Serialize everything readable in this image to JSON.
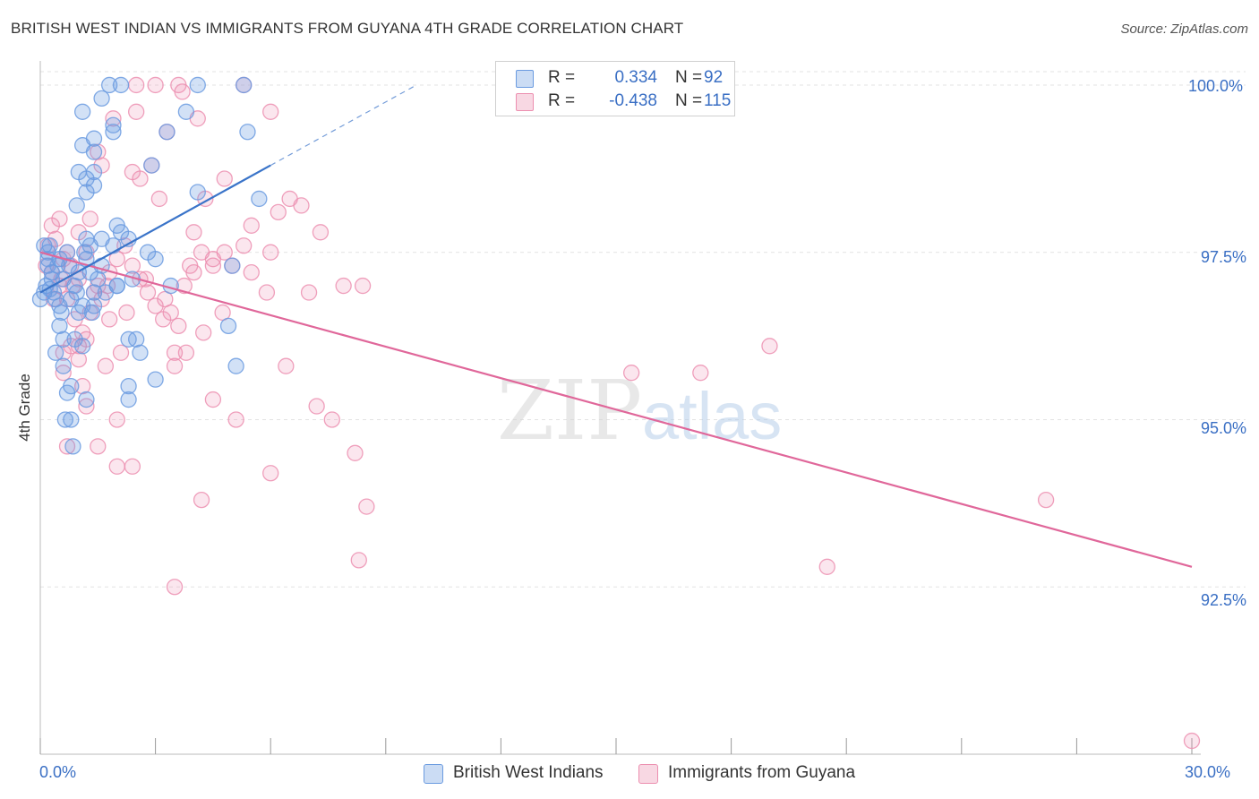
{
  "header": {
    "title": "BRITISH WEST INDIAN VS IMMIGRANTS FROM GUYANA 4TH GRADE CORRELATION CHART",
    "source": "Source: ZipAtlas.com"
  },
  "watermark": {
    "part1": "ZIP",
    "part2": "atlas"
  },
  "stats": {
    "blue": {
      "r_label": "R =",
      "r_value": "0.334",
      "n_label": "N =",
      "n_value": "92"
    },
    "pink": {
      "r_label": "R =",
      "r_value": "-0.438",
      "n_label": "N =",
      "n_value": "115"
    }
  },
  "legend": {
    "blue_label": "British West Indians",
    "pink_label": "Immigrants from Guyana"
  },
  "axes": {
    "ylabel": "4th Grade",
    "x_tick_labels": [
      "0.0%",
      "30.0%"
    ],
    "y_tick_labels": [
      "100.0%",
      "97.5%",
      "95.0%",
      "92.5%"
    ]
  },
  "colors": {
    "blue": "#6b9be0",
    "blue_fill": "rgba(107,155,224,0.30)",
    "blue_line": "#3a74c9",
    "pink": "#ec8fb0",
    "pink_fill": "rgba(236,143,176,0.22)",
    "pink_line": "#e0679a",
    "grid": "#e3e3e3",
    "tick_text": "#3a6fc4"
  },
  "chart_data": {
    "type": "scatter",
    "title": "BRITISH WEST INDIAN VS IMMIGRANTS FROM GUYANA 4TH GRADE CORRELATION CHART",
    "xlabel": "",
    "ylabel": "4th Grade",
    "xlim": [
      0,
      30
    ],
    "ylim": [
      90.0,
      100.2
    ],
    "x_ticks": [
      0,
      3,
      6,
      9,
      12,
      15,
      18,
      21,
      24,
      27,
      30
    ],
    "y_gridlines": [
      100.0,
      97.5,
      95.0,
      92.5
    ],
    "grid": true,
    "legend_position": "bottom-center",
    "series": [
      {
        "name": "British West Indians",
        "r": 0.334,
        "n": 92,
        "trend": {
          "x": [
            0,
            6.0
          ],
          "y": [
            96.9,
            98.8
          ],
          "dashed_extension_x": [
            6.0,
            9.8
          ],
          "dashed_extension_y": [
            98.8,
            100.0
          ]
        },
        "points": [
          [
            0.1,
            97.6
          ],
          [
            0.2,
            97.3
          ],
          [
            0.15,
            97.0
          ],
          [
            0.3,
            97.2
          ],
          [
            0.2,
            97.5
          ],
          [
            0.4,
            96.8
          ],
          [
            0.5,
            97.4
          ],
          [
            0.6,
            97.1
          ],
          [
            0.35,
            96.9
          ],
          [
            0.25,
            97.6
          ],
          [
            0.8,
            96.8
          ],
          [
            0.9,
            97.0
          ],
          [
            1.0,
            97.2
          ],
          [
            0.7,
            97.5
          ],
          [
            1.1,
            96.7
          ],
          [
            1.2,
            97.4
          ],
          [
            1.3,
            97.6
          ],
          [
            1.4,
            96.9
          ],
          [
            1.5,
            97.1
          ],
          [
            1.6,
            97.3
          ],
          [
            0.5,
            96.4
          ],
          [
            0.6,
            96.2
          ],
          [
            0.9,
            96.2
          ],
          [
            1.1,
            96.1
          ],
          [
            0.4,
            96.0
          ],
          [
            0.6,
            95.8
          ],
          [
            1.0,
            96.6
          ],
          [
            1.4,
            96.7
          ],
          [
            1.7,
            96.9
          ],
          [
            2.0,
            97.0
          ],
          [
            0.7,
            95.4
          ],
          [
            0.8,
            95.5
          ],
          [
            1.2,
            95.3
          ],
          [
            0.65,
            95.0
          ],
          [
            0.8,
            95.0
          ],
          [
            0.85,
            94.6
          ],
          [
            2.3,
            95.5
          ],
          [
            2.3,
            95.3
          ],
          [
            2.6,
            96.0
          ],
          [
            2.3,
            96.2
          ],
          [
            0.95,
            98.2
          ],
          [
            1.2,
            98.4
          ],
          [
            1.4,
            98.5
          ],
          [
            1.0,
            98.7
          ],
          [
            1.2,
            98.6
          ],
          [
            1.4,
            98.7
          ],
          [
            1.1,
            99.1
          ],
          [
            1.4,
            99.2
          ],
          [
            1.4,
            99.0
          ],
          [
            1.1,
            99.6
          ],
          [
            1.9,
            99.3
          ],
          [
            1.9,
            99.4
          ],
          [
            1.6,
            99.8
          ],
          [
            1.8,
            100.0
          ],
          [
            2.1,
            100.0
          ],
          [
            4.1,
            100.0
          ],
          [
            5.3,
            100.0
          ],
          [
            3.8,
            99.6
          ],
          [
            5.4,
            99.3
          ],
          [
            3.3,
            99.3
          ],
          [
            2.9,
            98.8
          ],
          [
            4.1,
            98.4
          ],
          [
            5.7,
            98.3
          ],
          [
            2.0,
            97.9
          ],
          [
            2.1,
            97.8
          ],
          [
            1.9,
            97.6
          ],
          [
            2.3,
            97.7
          ],
          [
            1.6,
            97.7
          ],
          [
            1.2,
            97.7
          ],
          [
            2.8,
            97.5
          ],
          [
            3.0,
            97.4
          ],
          [
            2.4,
            97.1
          ],
          [
            3.4,
            97.0
          ],
          [
            5.0,
            97.3
          ],
          [
            1.3,
            97.2
          ],
          [
            2.0,
            97.0
          ],
          [
            4.9,
            96.4
          ],
          [
            3.0,
            95.6
          ],
          [
            5.1,
            95.8
          ],
          [
            2.5,
            96.2
          ],
          [
            0.3,
            97.1
          ],
          [
            0.5,
            96.7
          ],
          [
            0.2,
            97.4
          ],
          [
            0.45,
            97.3
          ],
          [
            0.55,
            96.6
          ],
          [
            0.75,
            97.3
          ],
          [
            0.95,
            96.9
          ],
          [
            1.15,
            97.5
          ],
          [
            1.35,
            96.6
          ],
          [
            0.1,
            96.9
          ],
          [
            0.0,
            96.8
          ],
          [
            0.25,
            96.95
          ]
        ]
      },
      {
        "name": "Immigrants from Guyana",
        "r": -0.438,
        "n": 115,
        "trend": {
          "x": [
            0,
            30
          ],
          "y": [
            97.5,
            92.8
          ]
        },
        "points": [
          [
            0.2,
            97.6
          ],
          [
            0.3,
            97.9
          ],
          [
            0.4,
            97.7
          ],
          [
            0.5,
            98.0
          ],
          [
            0.6,
            97.4
          ],
          [
            0.3,
            97.2
          ],
          [
            0.5,
            97.0
          ],
          [
            0.8,
            97.3
          ],
          [
            1.0,
            97.1
          ],
          [
            1.2,
            97.5
          ],
          [
            0.7,
            96.8
          ],
          [
            0.9,
            96.5
          ],
          [
            1.1,
            96.3
          ],
          [
            1.3,
            96.6
          ],
          [
            0.8,
            96.1
          ],
          [
            1.0,
            95.9
          ],
          [
            1.2,
            96.2
          ],
          [
            0.6,
            96.0
          ],
          [
            1.6,
            96.8
          ],
          [
            1.8,
            96.5
          ],
          [
            1.5,
            97.0
          ],
          [
            1.8,
            97.2
          ],
          [
            2.0,
            97.4
          ],
          [
            2.2,
            97.6
          ],
          [
            2.4,
            97.3
          ],
          [
            2.6,
            97.1
          ],
          [
            2.8,
            96.9
          ],
          [
            3.0,
            96.7
          ],
          [
            3.2,
            96.5
          ],
          [
            3.4,
            96.6
          ],
          [
            3.6,
            96.4
          ],
          [
            3.8,
            96.0
          ],
          [
            3.9,
            97.3
          ],
          [
            4.0,
            97.2
          ],
          [
            4.2,
            97.5
          ],
          [
            4.5,
            97.4
          ],
          [
            4.8,
            97.5
          ],
          [
            5.0,
            97.3
          ],
          [
            5.3,
            97.6
          ],
          [
            5.5,
            97.2
          ],
          [
            5.9,
            96.9
          ],
          [
            6.0,
            97.5
          ],
          [
            6.2,
            98.1
          ],
          [
            6.5,
            98.3
          ],
          [
            6.8,
            98.2
          ],
          [
            7.3,
            97.8
          ],
          [
            7.0,
            96.9
          ],
          [
            7.9,
            97.0
          ],
          [
            8.4,
            97.0
          ],
          [
            3.1,
            98.3
          ],
          [
            2.4,
            98.7
          ],
          [
            2.6,
            98.6
          ],
          [
            1.5,
            99.0
          ],
          [
            1.9,
            99.5
          ],
          [
            2.5,
            99.6
          ],
          [
            3.3,
            99.3
          ],
          [
            3.7,
            99.9
          ],
          [
            3.6,
            100.0
          ],
          [
            4.1,
            99.5
          ],
          [
            5.3,
            100.0
          ],
          [
            6.0,
            99.6
          ],
          [
            2.5,
            100.0
          ],
          [
            3.0,
            100.0
          ],
          [
            4.3,
            98.3
          ],
          [
            4.8,
            98.6
          ],
          [
            2.9,
            98.8
          ],
          [
            1.6,
            98.8
          ],
          [
            1.3,
            98.0
          ],
          [
            1.0,
            97.8
          ],
          [
            0.7,
            97.5
          ],
          [
            4.0,
            97.8
          ],
          [
            4.5,
            97.3
          ],
          [
            5.5,
            97.9
          ],
          [
            1.1,
            95.5
          ],
          [
            1.7,
            95.8
          ],
          [
            2.1,
            96.0
          ],
          [
            1.0,
            96.1
          ],
          [
            1.2,
            95.2
          ],
          [
            0.6,
            95.7
          ],
          [
            0.7,
            94.6
          ],
          [
            1.5,
            94.6
          ],
          [
            2.0,
            95.0
          ],
          [
            2.0,
            94.3
          ],
          [
            2.4,
            94.3
          ],
          [
            3.5,
            95.8
          ],
          [
            3.5,
            96.0
          ],
          [
            4.5,
            95.3
          ],
          [
            5.1,
            95.0
          ],
          [
            6.0,
            94.2
          ],
          [
            6.4,
            95.8
          ],
          [
            7.2,
            95.2
          ],
          [
            7.6,
            95.0
          ],
          [
            8.2,
            94.5
          ],
          [
            8.5,
            93.7
          ],
          [
            8.3,
            92.9
          ],
          [
            4.2,
            93.8
          ],
          [
            3.5,
            92.5
          ],
          [
            15.4,
            95.7
          ],
          [
            17.2,
            95.7
          ],
          [
            19.0,
            96.1
          ],
          [
            26.2,
            93.8
          ],
          [
            20.5,
            92.8
          ],
          [
            30.0,
            90.2
          ],
          [
            0.15,
            97.3
          ],
          [
            0.35,
            96.8
          ],
          [
            0.55,
            97.1
          ],
          [
            0.85,
            97.0
          ],
          [
            1.4,
            96.9
          ],
          [
            1.75,
            97.0
          ],
          [
            2.25,
            96.6
          ],
          [
            2.75,
            97.1
          ],
          [
            3.25,
            96.8
          ],
          [
            3.75,
            97.0
          ],
          [
            4.25,
            96.3
          ],
          [
            4.75,
            96.6
          ]
        ]
      }
    ]
  }
}
